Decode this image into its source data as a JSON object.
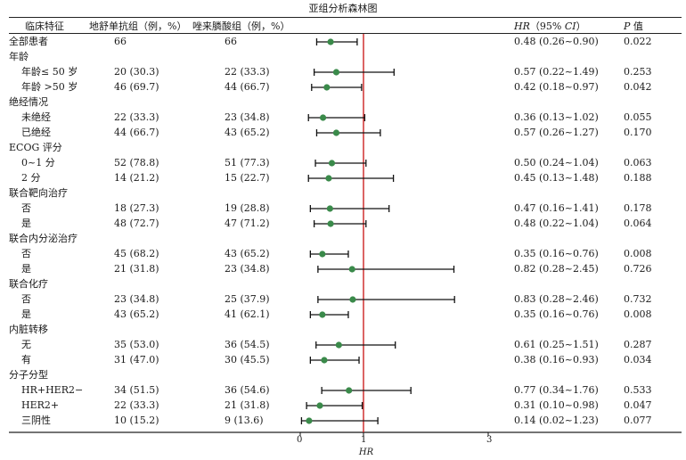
{
  "title": "亚组分析森林图",
  "headers": {
    "subgroup": "临床特征",
    "arm_a": "地舒单抗组（例，%）",
    "arm_b": "唑来膦酸组（例，%）",
    "hr_label": "HR",
    "hr_ci": "（95%",
    "ci_label": "CI",
    "ci_close": "）",
    "p_label": "P",
    "p_suffix": " 值"
  },
  "rows": [
    {
      "label": "全部患者",
      "kind": "group",
      "a": "66",
      "b": "66",
      "hr_text": "0.48 (0.26~0.90)",
      "p": "0.022",
      "hr": 0.48,
      "lo": 0.26,
      "hi": 0.9
    },
    {
      "label": "年龄",
      "kind": "header"
    },
    {
      "label": "年龄≤ 50 岁",
      "kind": "sub",
      "a": "20 (30.3)",
      "b": "22 (33.3)",
      "hr_text": "0.57 (0.22~1.49)",
      "p": "0.253",
      "hr": 0.57,
      "lo": 0.22,
      "hi": 1.49
    },
    {
      "label": "年龄 >50 岁",
      "kind": "sub",
      "a": "46 (69.7)",
      "b": "44 (66.7)",
      "hr_text": "0.42 (0.18~0.97)",
      "p": "0.042",
      "hr": 0.42,
      "lo": 0.18,
      "hi": 0.97
    },
    {
      "label": "绝经情况",
      "kind": "header"
    },
    {
      "label": "未绝经",
      "kind": "sub",
      "a": "22 (33.3)",
      "b": "23 (34.8)",
      "hr_text": "0.36 (0.13~1.02)",
      "p": "0.055",
      "hr": 0.36,
      "lo": 0.13,
      "hi": 1.02
    },
    {
      "label": "已绝经",
      "kind": "sub",
      "a": "44 (66.7)",
      "b": "43 (65.2)",
      "hr_text": "0.57 (0.26~1.27)",
      "p": "0.170",
      "hr": 0.57,
      "lo": 0.26,
      "hi": 1.27
    },
    {
      "label": "ECOG 评分",
      "kind": "header"
    },
    {
      "label": "0~1 分",
      "kind": "sub",
      "a": "52 (78.8)",
      "b": "51 (77.3)",
      "hr_text": "0.50 (0.24~1.04)",
      "p": "0.063",
      "hr": 0.5,
      "lo": 0.24,
      "hi": 1.04
    },
    {
      "label": "2 分",
      "kind": "sub",
      "a": "14 (21.2)",
      "b": "15 (22.7)",
      "hr_text": "0.45 (0.13~1.48)",
      "p": "0.188",
      "hr": 0.45,
      "lo": 0.13,
      "hi": 1.48
    },
    {
      "label": "联合靶向治疗",
      "kind": "header"
    },
    {
      "label": "否",
      "kind": "sub",
      "a": "18 (27.3)",
      "b": "19 (28.8)",
      "hr_text": "0.47 (0.16~1.41)",
      "p": "0.178",
      "hr": 0.47,
      "lo": 0.16,
      "hi": 1.41
    },
    {
      "label": "是",
      "kind": "sub",
      "a": "48 (72.7)",
      "b": "47 (71.2)",
      "hr_text": "0.48 (0.22~1.04)",
      "p": "0.064",
      "hr": 0.48,
      "lo": 0.22,
      "hi": 1.04
    },
    {
      "label": "联合内分泌治疗",
      "kind": "header"
    },
    {
      "label": "否",
      "kind": "sub",
      "a": "45 (68.2)",
      "b": "43 (65.2)",
      "hr_text": "0.35 (0.16~0.76)",
      "p": "0.008",
      "hr": 0.35,
      "lo": 0.16,
      "hi": 0.76
    },
    {
      "label": "是",
      "kind": "sub",
      "a": "21 (31.8)",
      "b": "23 (34.8)",
      "hr_text": "0.82 (0.28~2.45)",
      "p": "0.726",
      "hr": 0.82,
      "lo": 0.28,
      "hi": 2.45
    },
    {
      "label": "联合化疗",
      "kind": "header"
    },
    {
      "label": "否",
      "kind": "sub",
      "a": "23 (34.8)",
      "b": "25 (37.9)",
      "hr_text": "0.83 (0.28~2.46)",
      "p": "0.732",
      "hr": 0.83,
      "lo": 0.28,
      "hi": 2.46
    },
    {
      "label": "是",
      "kind": "sub",
      "a": "43 (65.2)",
      "b": "41 (62.1)",
      "hr_text": "0.35 (0.16~0.76)",
      "p": "0.008",
      "hr": 0.35,
      "lo": 0.16,
      "hi": 0.76
    },
    {
      "label": "内脏转移",
      "kind": "header"
    },
    {
      "label": "无",
      "kind": "sub",
      "a": "35 (53.0)",
      "b": "36 (54.5)",
      "hr_text": "0.61 (0.25~1.51)",
      "p": "0.287",
      "hr": 0.61,
      "lo": 0.25,
      "hi": 1.51
    },
    {
      "label": "有",
      "kind": "sub",
      "a": "31 (47.0)",
      "b": "30 (45.5)",
      "hr_text": "0.38 (0.16~0.93)",
      "p": "0.034",
      "hr": 0.38,
      "lo": 0.16,
      "hi": 0.93
    },
    {
      "label": "分子分型",
      "kind": "header"
    },
    {
      "label": "HR+HER2−",
      "kind": "sub",
      "a": "34 (51.5)",
      "b": "36 (54.6)",
      "hr_text": "0.77 (0.34~1.76)",
      "p": "0.533",
      "hr": 0.77,
      "lo": 0.34,
      "hi": 1.76
    },
    {
      "label": "HER2+",
      "kind": "sub",
      "a": "22 (33.3)",
      "b": "21 (31.8)",
      "hr_text": "0.31 (0.10~0.98)",
      "p": "0.047",
      "hr": 0.31,
      "lo": 0.1,
      "hi": 0.98
    },
    {
      "label": "三阴性",
      "kind": "sub",
      "a": "10 (15.2)",
      "b": "9 (13.6)",
      "hr_text": "0.14 (0.02~1.23)",
      "p": "0.077",
      "hr": 0.14,
      "lo": 0.02,
      "hi": 1.23
    }
  ],
  "chart_data": {
    "type": "forest",
    "title": "亚组分析森林图",
    "xlabel": "HR",
    "xlim": [
      0,
      3
    ],
    "xticks": [
      "0",
      "1",
      "3"
    ],
    "reference_line": 1,
    "colors": {
      "point": "#3a8a4a",
      "reference": "#cc2222",
      "whisker": "#111111"
    }
  }
}
